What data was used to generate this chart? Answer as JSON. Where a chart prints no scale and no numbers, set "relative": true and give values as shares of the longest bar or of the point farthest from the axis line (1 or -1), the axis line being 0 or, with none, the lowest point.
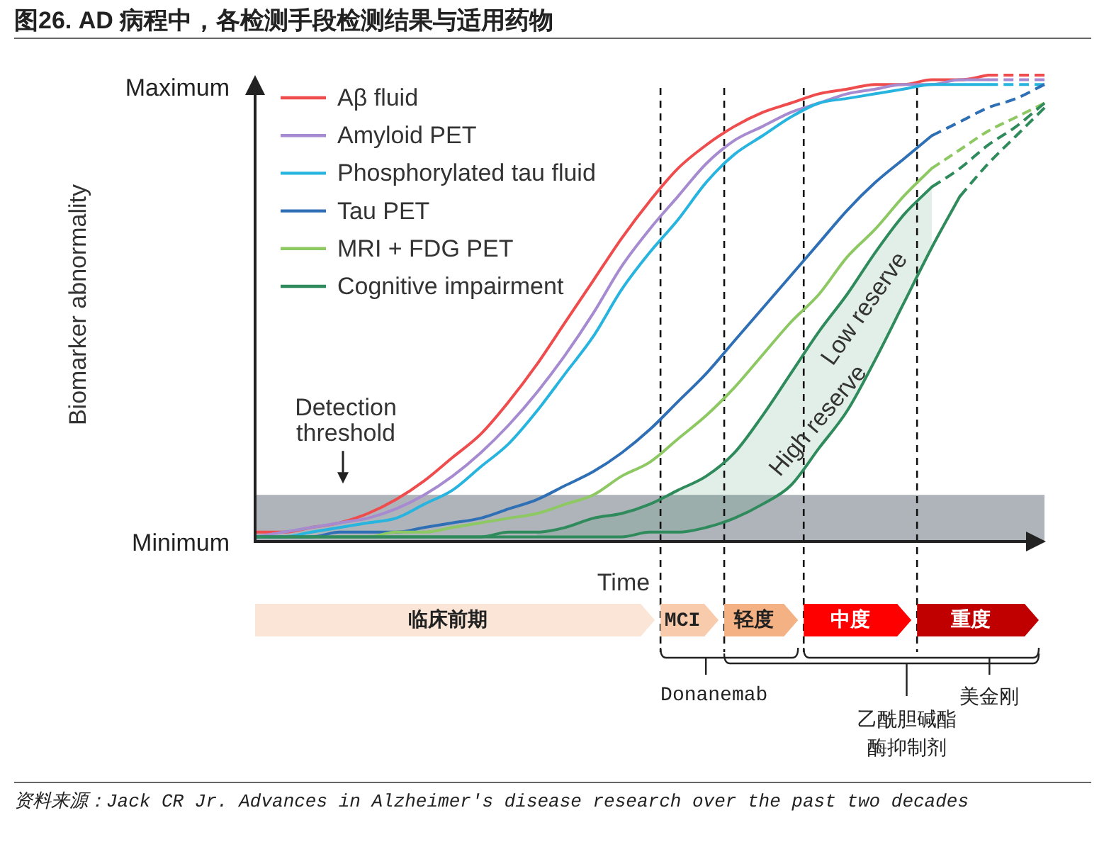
{
  "chart_data": {
    "type": "line",
    "title": "图26. AD 病程中，各检测手段检测结果与适用药物",
    "xlabel": "Time",
    "relative": true,
    "legend": "top left",
    "tick_labels": false,
    "categories": [
      null,
      null,
      null,
      null,
      null,
      null,
      null,
      null,
      null,
      null,
      null,
      null,
      null,
      null,
      null,
      null,
      null,
      null,
      null,
      null,
      null,
      null,
      null,
      null,
      null,
      null,
      null,
      null,
      null
    ],
    "series": [
      {
        "name": "Aβ fluid",
        "color": "#ef4c4d",
        "values": [
          0.02,
          0.02,
          0.03,
          0.04,
          0.06,
          0.09,
          0.13,
          0.18,
          0.23,
          0.3,
          0.38,
          0.47,
          0.56,
          0.65,
          0.73,
          0.8,
          0.85,
          0.89,
          0.92,
          0.94,
          0.96,
          0.97,
          0.98,
          0.98,
          0.99,
          0.99,
          1.0,
          null,
          null
        ]
      },
      {
        "name": "Amyloid PET",
        "color": "#a78bd0",
        "values": [
          0.01,
          0.02,
          0.03,
          0.04,
          0.05,
          0.07,
          0.1,
          0.14,
          0.19,
          0.25,
          0.32,
          0.4,
          0.49,
          0.59,
          0.67,
          0.74,
          0.81,
          0.86,
          0.89,
          0.92,
          0.94,
          0.96,
          0.97,
          0.98,
          0.98,
          0.99,
          0.99,
          null,
          null
        ]
      },
      {
        "name": "Phosphorylated tau fluid",
        "color": "#27b4de",
        "values": [
          0.01,
          0.01,
          0.02,
          0.03,
          0.04,
          0.05,
          0.08,
          0.11,
          0.16,
          0.21,
          0.28,
          0.36,
          0.44,
          0.54,
          0.62,
          0.69,
          0.77,
          0.83,
          0.87,
          0.91,
          0.94,
          0.95,
          0.96,
          0.97,
          0.98,
          0.98,
          0.98,
          null,
          null
        ]
      },
      {
        "name": "Tau PET",
        "color": "#2f6fb5",
        "values": [
          0.01,
          0.01,
          0.01,
          0.02,
          0.02,
          0.02,
          0.03,
          0.04,
          0.05,
          0.07,
          0.09,
          0.12,
          0.15,
          0.19,
          0.24,
          0.3,
          0.36,
          0.43,
          0.5,
          0.57,
          0.64,
          0.71,
          0.77,
          0.82,
          0.87,
          null,
          null,
          null,
          null
        ]
      },
      {
        "name": "MRI + FDG PET",
        "color": "#8dc863",
        "values": [
          null,
          null,
          null,
          0.01,
          0.01,
          0.02,
          0.02,
          0.03,
          0.04,
          0.05,
          0.06,
          0.08,
          0.1,
          0.14,
          0.17,
          0.22,
          0.27,
          0.33,
          0.4,
          0.47,
          0.53,
          0.61,
          0.67,
          0.74,
          0.8,
          null,
          null,
          null,
          null
        ]
      },
      {
        "name": "Cognitive impairment",
        "color": "#2f8b5b",
        "values": [
          0.01,
          0.01,
          0.01,
          0.01,
          0.01,
          0.01,
          0.01,
          0.01,
          0.01,
          0.02,
          0.02,
          0.03,
          0.05,
          0.06,
          0.08,
          0.11,
          0.14,
          0.19,
          0.27,
          0.36,
          0.45,
          0.53,
          0.62,
          0.7,
          0.76,
          null,
          null,
          null,
          null
        ],
        "lower": [
          null,
          null,
          null,
          null,
          null,
          null,
          null,
          null,
          null,
          null,
          0.01,
          0.01,
          0.01,
          0.01,
          0.02,
          0.02,
          0.03,
          0.05,
          0.08,
          0.12,
          0.2,
          0.28,
          0.39,
          0.51,
          0.63,
          null,
          null,
          null,
          null
        ],
        "upper": [
          null,
          null,
          null,
          null,
          null,
          null,
          null,
          null,
          null,
          null,
          0.02,
          0.03,
          0.05,
          0.06,
          0.08,
          0.11,
          0.14,
          0.19,
          0.27,
          0.36,
          0.45,
          0.53,
          0.62,
          0.7,
          0.76,
          null,
          null,
          null,
          null
        ]
      },
      {
        "color": "#2f8b5b",
        "values": [
          0.01,
          0.01,
          0.01,
          0.01,
          0.01,
          0.01,
          0.01,
          0.01,
          0.01,
          0.01,
          0.01,
          0.01,
          0.01,
          0.01,
          0.02,
          0.02,
          0.03,
          0.05,
          0.08,
          0.12,
          0.2,
          0.28,
          0.39,
          0.51,
          0.63,
          0.74,
          null,
          null,
          null
        ]
      },
      {
        "color": "#ef4c4d",
        "line_style": "dashed",
        "values": [
          null,
          null,
          null,
          null,
          null,
          null,
          null,
          null,
          null,
          null,
          null,
          null,
          null,
          null,
          null,
          null,
          null,
          null,
          null,
          null,
          null,
          null,
          null,
          null,
          null,
          null,
          1.0,
          1.0,
          1.0
        ]
      },
      {
        "color": "#a78bd0",
        "line_style": "dashed",
        "values": [
          null,
          null,
          null,
          null,
          null,
          null,
          null,
          null,
          null,
          null,
          null,
          null,
          null,
          null,
          null,
          null,
          null,
          null,
          null,
          null,
          null,
          null,
          null,
          null,
          null,
          null,
          0.99,
          0.99,
          0.99
        ]
      },
      {
        "color": "#27b4de",
        "line_style": "dashed",
        "values": [
          null,
          null,
          null,
          null,
          null,
          null,
          null,
          null,
          null,
          null,
          null,
          null,
          null,
          null,
          null,
          null,
          null,
          null,
          null,
          null,
          null,
          null,
          null,
          null,
          null,
          null,
          0.98,
          0.98,
          0.98
        ]
      },
      {
        "color": "#2f6fb5",
        "line_style": "dashed",
        "values": [
          null,
          null,
          null,
          null,
          null,
          null,
          null,
          null,
          null,
          null,
          null,
          null,
          null,
          null,
          null,
          null,
          null,
          null,
          null,
          null,
          null,
          null,
          null,
          null,
          0.87,
          0.9,
          0.93,
          0.95,
          0.98
        ]
      },
      {
        "color": "#8dc863",
        "line_style": "dashed",
        "values": [
          null,
          null,
          null,
          null,
          null,
          null,
          null,
          null,
          null,
          null,
          null,
          null,
          null,
          null,
          null,
          null,
          null,
          null,
          null,
          null,
          null,
          null,
          null,
          null,
          0.8,
          0.84,
          0.88,
          0.91,
          0.94
        ]
      },
      {
        "color": "#2f8b5b",
        "line_style": "dashed",
        "values": [
          null,
          null,
          null,
          null,
          null,
          null,
          null,
          null,
          null,
          null,
          null,
          null,
          null,
          null,
          null,
          null,
          null,
          null,
          null,
          null,
          null,
          null,
          null,
          null,
          0.76,
          0.8,
          0.85,
          0.89,
          0.94
        ]
      },
      {
        "color": "#2f8b5b",
        "line_style": "dashed",
        "values": [
          null,
          null,
          null,
          null,
          null,
          null,
          null,
          null,
          null,
          null,
          null,
          null,
          null,
          null,
          null,
          null,
          null,
          null,
          null,
          null,
          null,
          null,
          null,
          null,
          null,
          0.74,
          0.81,
          0.87,
          0.93
        ]
      }
    ],
    "bands": [
      {
        "axis": "y",
        "from": 0,
        "to": 0.1,
        "label": "Detection threshold",
        "color": "#aeb4ba"
      }
    ],
    "annotations": [
      "Maximum",
      "Minimum",
      "Low reserve",
      "High reserve",
      "临床前期",
      "MCI",
      "轻度",
      "中度",
      "重度",
      "Donanemab",
      "乙酰胆碱酯酶抑制剂",
      "美金刚",
      "Biomarker abnormality",
      "资料来源：Jack CR Jr. Advances in Alzheimer's disease research over the past two decades"
    ]
  }
}
